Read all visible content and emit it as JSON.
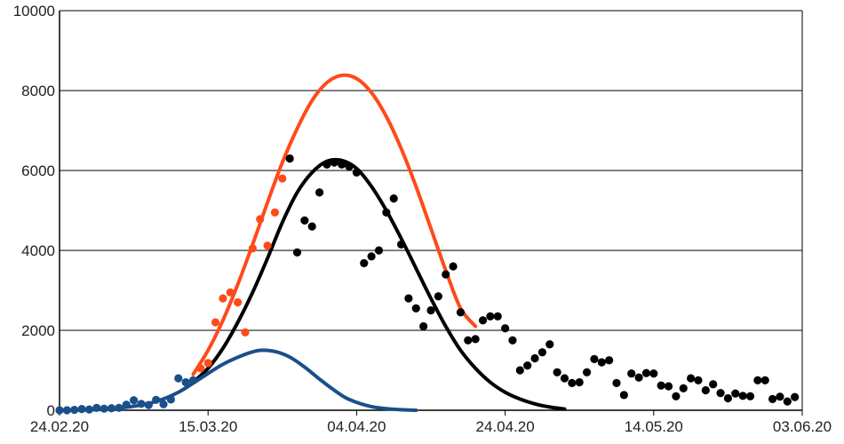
{
  "chart_data": {
    "type": "scatter",
    "title": "",
    "xlabel": "",
    "ylabel": "",
    "x_range": [
      "2020-02-24",
      "2020-06-03"
    ],
    "x_ticks": [
      "24.02.20",
      "15.03.20",
      "04.04.20",
      "24.04.20",
      "14.05.20",
      "03.06.20"
    ],
    "x_tick_dates": [
      "2020-02-24",
      "2020-03-15",
      "2020-04-04",
      "2020-04-24",
      "2020-05-14",
      "2020-06-03"
    ],
    "ylim": [
      0,
      10000
    ],
    "y_ticks": [
      0,
      2000,
      4000,
      6000,
      8000,
      10000
    ],
    "grid": "horizontal",
    "legend": "none",
    "series": [
      {
        "kind": "points",
        "color": "#1a4f8a",
        "points": [
          [
            "2020-02-24",
            0
          ],
          [
            "2020-02-25",
            0
          ],
          [
            "2020-02-26",
            10
          ],
          [
            "2020-02-27",
            30
          ],
          [
            "2020-02-28",
            20
          ],
          [
            "2020-02-29",
            60
          ],
          [
            "2020-03-01",
            40
          ],
          [
            "2020-03-02",
            50
          ],
          [
            "2020-03-03",
            60
          ],
          [
            "2020-03-04",
            140
          ],
          [
            "2020-03-05",
            250
          ],
          [
            "2020-03-06",
            160
          ],
          [
            "2020-03-07",
            130
          ],
          [
            "2020-03-08",
            260
          ],
          [
            "2020-03-09",
            150
          ],
          [
            "2020-03-10",
            270
          ],
          [
            "2020-03-11",
            800
          ],
          [
            "2020-03-12",
            700
          ],
          [
            "2020-03-13",
            750
          ]
        ]
      },
      {
        "kind": "points",
        "color": "#ff4a1a",
        "points": [
          [
            "2020-03-14",
            1050
          ],
          [
            "2020-03-15",
            1180
          ],
          [
            "2020-03-16",
            2200
          ],
          [
            "2020-03-17",
            2800
          ],
          [
            "2020-03-18",
            2950
          ],
          [
            "2020-03-19",
            2700
          ],
          [
            "2020-03-20",
            1950
          ],
          [
            "2020-03-21",
            4050
          ],
          [
            "2020-03-22",
            4780
          ],
          [
            "2020-03-23",
            4120
          ],
          [
            "2020-03-24",
            4950
          ],
          [
            "2020-03-25",
            5800
          ],
          [
            "2020-03-26",
            6300
          ]
        ]
      },
      {
        "kind": "points",
        "color": "#000000",
        "points": [
          [
            "2020-03-26",
            6300
          ],
          [
            "2020-03-27",
            3950
          ],
          [
            "2020-03-28",
            4750
          ],
          [
            "2020-03-29",
            4600
          ],
          [
            "2020-03-30",
            5450
          ],
          [
            "2020-03-31",
            6150
          ],
          [
            "2020-04-01",
            6200
          ],
          [
            "2020-04-02",
            6150
          ],
          [
            "2020-04-03",
            6100
          ],
          [
            "2020-04-04",
            5950
          ],
          [
            "2020-04-05",
            3680
          ],
          [
            "2020-04-06",
            3850
          ],
          [
            "2020-04-07",
            4000
          ],
          [
            "2020-04-08",
            4950
          ],
          [
            "2020-04-09",
            5300
          ],
          [
            "2020-04-10",
            4150
          ],
          [
            "2020-04-11",
            2800
          ],
          [
            "2020-04-12",
            2550
          ],
          [
            "2020-04-13",
            2100
          ],
          [
            "2020-04-14",
            2500
          ],
          [
            "2020-04-15",
            2850
          ],
          [
            "2020-04-16",
            3400
          ],
          [
            "2020-04-17",
            3600
          ],
          [
            "2020-04-18",
            2450
          ],
          [
            "2020-04-19",
            1750
          ],
          [
            "2020-04-20",
            1780
          ],
          [
            "2020-04-21",
            2250
          ],
          [
            "2020-04-22",
            2350
          ],
          [
            "2020-04-23",
            2350
          ],
          [
            "2020-04-24",
            2050
          ],
          [
            "2020-04-25",
            1750
          ],
          [
            "2020-04-26",
            1000
          ],
          [
            "2020-04-27",
            1120
          ],
          [
            "2020-04-28",
            1300
          ],
          [
            "2020-04-29",
            1450
          ],
          [
            "2020-04-30",
            1650
          ],
          [
            "2020-05-01",
            950
          ],
          [
            "2020-05-02",
            800
          ],
          [
            "2020-05-03",
            680
          ],
          [
            "2020-05-04",
            700
          ],
          [
            "2020-05-05",
            950
          ],
          [
            "2020-05-06",
            1280
          ],
          [
            "2020-05-07",
            1200
          ],
          [
            "2020-05-08",
            1250
          ],
          [
            "2020-05-09",
            680
          ],
          [
            "2020-05-10",
            380
          ],
          [
            "2020-05-11",
            920
          ],
          [
            "2020-05-12",
            820
          ],
          [
            "2020-05-13",
            930
          ],
          [
            "2020-05-14",
            920
          ],
          [
            "2020-05-15",
            620
          ],
          [
            "2020-05-16",
            600
          ],
          [
            "2020-05-17",
            350
          ],
          [
            "2020-05-18",
            550
          ],
          [
            "2020-05-19",
            800
          ],
          [
            "2020-05-20",
            750
          ],
          [
            "2020-05-21",
            500
          ],
          [
            "2020-05-22",
            650
          ],
          [
            "2020-05-23",
            430
          ],
          [
            "2020-05-24",
            300
          ],
          [
            "2020-05-25",
            420
          ],
          [
            "2020-05-26",
            360
          ],
          [
            "2020-05-27",
            350
          ],
          [
            "2020-05-28",
            750
          ],
          [
            "2020-05-29",
            750
          ],
          [
            "2020-05-30",
            280
          ],
          [
            "2020-05-31",
            340
          ],
          [
            "2020-06-01",
            220
          ],
          [
            "2020-06-02",
            330
          ]
        ]
      },
      {
        "kind": "curve",
        "color": "#ff4a1a",
        "points": [
          [
            "2020-03-13",
            900
          ],
          [
            "2020-03-15",
            1500
          ],
          [
            "2020-03-17",
            2250
          ],
          [
            "2020-03-19",
            3150
          ],
          [
            "2020-03-21",
            4150
          ],
          [
            "2020-03-23",
            5200
          ],
          [
            "2020-03-25",
            6200
          ],
          [
            "2020-03-27",
            7050
          ],
          [
            "2020-03-29",
            7750
          ],
          [
            "2020-03-31",
            8200
          ],
          [
            "2020-04-02",
            8380
          ],
          [
            "2020-04-04",
            8300
          ],
          [
            "2020-04-06",
            7950
          ],
          [
            "2020-04-08",
            7350
          ],
          [
            "2020-04-10",
            6550
          ],
          [
            "2020-04-12",
            5600
          ],
          [
            "2020-04-14",
            4550
          ],
          [
            "2020-04-16",
            3500
          ],
          [
            "2020-04-18",
            2550
          ],
          [
            "2020-04-20",
            2100
          ]
        ]
      },
      {
        "kind": "curve",
        "color": "#000000",
        "points": [
          [
            "2020-03-13",
            700
          ],
          [
            "2020-03-15",
            1050
          ],
          [
            "2020-03-17",
            1550
          ],
          [
            "2020-03-19",
            2200
          ],
          [
            "2020-03-21",
            2950
          ],
          [
            "2020-03-23",
            3800
          ],
          [
            "2020-03-25",
            4700
          ],
          [
            "2020-03-27",
            5450
          ],
          [
            "2020-03-29",
            5950
          ],
          [
            "2020-03-31",
            6230
          ],
          [
            "2020-04-02",
            6250
          ],
          [
            "2020-04-04",
            6050
          ],
          [
            "2020-04-06",
            5600
          ],
          [
            "2020-04-08",
            5000
          ],
          [
            "2020-04-10",
            4300
          ],
          [
            "2020-04-12",
            3550
          ],
          [
            "2020-04-14",
            2800
          ],
          [
            "2020-04-16",
            2100
          ],
          [
            "2020-04-18",
            1500
          ],
          [
            "2020-04-20",
            1050
          ],
          [
            "2020-04-22",
            700
          ],
          [
            "2020-04-24",
            450
          ],
          [
            "2020-04-26",
            280
          ],
          [
            "2020-04-28",
            160
          ],
          [
            "2020-04-30",
            80
          ],
          [
            "2020-05-02",
            30
          ]
        ]
      },
      {
        "kind": "curve",
        "color": "#1a4f8a",
        "points": [
          [
            "2020-02-24",
            0
          ],
          [
            "2020-02-28",
            10
          ],
          [
            "2020-03-02",
            40
          ],
          [
            "2020-03-05",
            100
          ],
          [
            "2020-03-08",
            220
          ],
          [
            "2020-03-11",
            450
          ],
          [
            "2020-03-14",
            800
          ],
          [
            "2020-03-17",
            1150
          ],
          [
            "2020-03-20",
            1400
          ],
          [
            "2020-03-22",
            1500
          ],
          [
            "2020-03-24",
            1470
          ],
          [
            "2020-03-26",
            1330
          ],
          [
            "2020-03-28",
            1080
          ],
          [
            "2020-03-30",
            780
          ],
          [
            "2020-04-01",
            500
          ],
          [
            "2020-04-03",
            270
          ],
          [
            "2020-04-06",
            90
          ],
          [
            "2020-04-09",
            25
          ],
          [
            "2020-04-12",
            0
          ]
        ]
      }
    ]
  }
}
